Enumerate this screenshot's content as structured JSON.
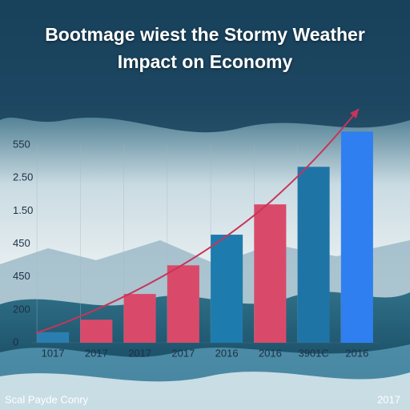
{
  "chart_data": {
    "type": "bar",
    "title": "Bootmage wiest the Stormy Weather Impact on Economy",
    "footer_left": "Scal Payde Conry",
    "footer_right": "2017",
    "categories": [
      "1017",
      "2017",
      "2017",
      "2017",
      "2016",
      "2016",
      "3901C",
      "2016"
    ],
    "values": [
      0.32,
      0.7,
      1.48,
      2.35,
      3.28,
      4.2,
      5.34,
      6.41
    ],
    "colors": [
      "#2a7fb0",
      "#d94a6a",
      "#d94a6a",
      "#d94a6a",
      "#1e7bad",
      "#d94a6a",
      "#1f74a6",
      "#2f7ff0"
    ],
    "ylim": [
      0,
      7
    ],
    "yticks": [
      0,
      {
        "value": 1,
        "label": "200"
      },
      {
        "value": 2,
        "label": "450"
      },
      {
        "value": 3,
        "label": "450"
      },
      {
        "value": 4,
        "label": "1.50"
      },
      {
        "value": 5,
        "label": "2.50"
      },
      {
        "value": 6,
        "label": "550"
      }
    ],
    "grid": false
  }
}
